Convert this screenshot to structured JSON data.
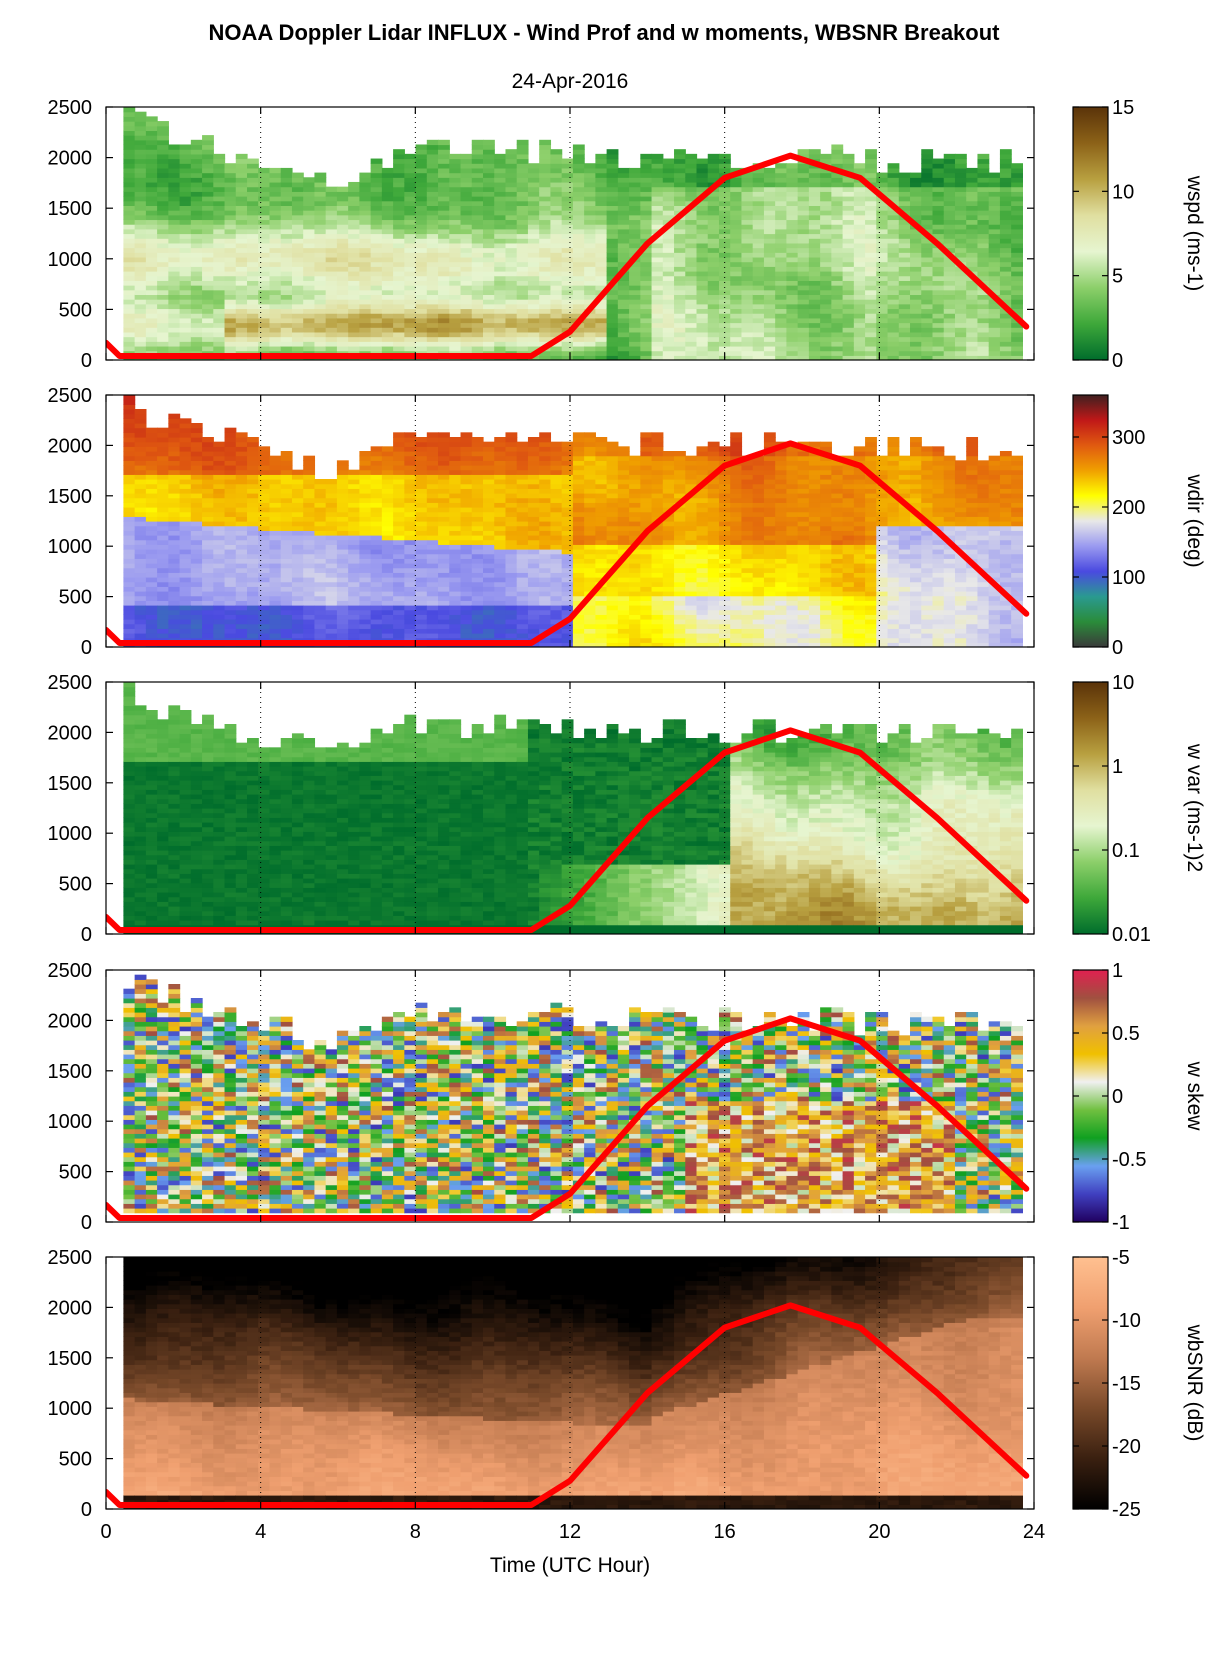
{
  "chart_data": {
    "type": "heatmap",
    "title": "NOAA Doppler Lidar INFLUX - Wind Prof and w moments, WBSNR Breakout",
    "subtitle": "24-Apr-2016",
    "xlabel": "Time (UTC Hour)",
    "xlim": [
      0,
      24
    ],
    "x_ticks": [
      "0",
      "4",
      "8",
      "12",
      "16",
      "20",
      "24"
    ],
    "x_tick_values": [
      0,
      4,
      8,
      12,
      16,
      20,
      24
    ],
    "ylim": [
      0,
      2500
    ],
    "y_ticks": [
      "0",
      "500",
      "1000",
      "1500",
      "2000",
      "2500"
    ],
    "y_tick_values": [
      0,
      500,
      1000,
      1500,
      2000,
      2500
    ],
    "vertical_dotted_gridlines_x": [
      4,
      8,
      12,
      16,
      20
    ],
    "overlay_curve": {
      "color": "#ff0000",
      "points": [
        [
          0.0,
          170
        ],
        [
          0.35,
          40
        ],
        [
          11.0,
          40
        ],
        [
          12.0,
          280
        ],
        [
          14.0,
          1150
        ],
        [
          16.0,
          1800
        ],
        [
          17.7,
          2020
        ],
        [
          19.5,
          1800
        ],
        [
          21.5,
          1150
        ],
        [
          23.8,
          330
        ]
      ]
    },
    "panels": [
      {
        "colorbar_label": "wspd (ms-1)",
        "colorbar_ticks": [
          "0",
          "5",
          "10",
          "15"
        ],
        "colorbar_tick_values": [
          0,
          5,
          10,
          15
        ],
        "colorbar_range": [
          0,
          15
        ],
        "colorbar_colors": [
          "#006d2c",
          "#3ea83a",
          "#8ccf6a",
          "#e6f5d0",
          "#e0dfa0",
          "#b8a040",
          "#8c6218",
          "#5a3309"
        ]
      },
      {
        "colorbar_label": "wdir (deg)",
        "colorbar_ticks": [
          "0",
          "100",
          "200",
          "300"
        ],
        "colorbar_tick_values": [
          0,
          100,
          200,
          300
        ],
        "colorbar_range": [
          0,
          360
        ],
        "colorbar_colors": [
          "#3a3a3a",
          "#2a8c3a",
          "#2a9a90",
          "#4a4ae0",
          "#9a9af0",
          "#e8e8e8",
          "#ffff00",
          "#f0a000",
          "#e05a10",
          "#c01818",
          "#402020"
        ]
      },
      {
        "colorbar_label": "w var (ms-1)2",
        "colorbar_ticks": [
          "0.01",
          "0.1",
          "1",
          "10"
        ],
        "colorbar_tick_values": [
          0.01,
          0.1,
          1,
          10
        ],
        "colorbar_range": [
          0.01,
          10
        ],
        "colorbar_scale": "log",
        "colorbar_colors": [
          "#006d2c",
          "#3ea83a",
          "#8ccf6a",
          "#e6f5d0",
          "#e0dfa0",
          "#b8a040",
          "#8c6218",
          "#5a3309"
        ]
      },
      {
        "colorbar_label": "w skew",
        "colorbar_ticks": [
          "-1",
          "-0.5",
          "0",
          "0.5",
          "1"
        ],
        "colorbar_tick_values": [
          -1,
          -0.5,
          0,
          0.5,
          1
        ],
        "colorbar_range": [
          -1,
          1
        ],
        "colorbar_colors": [
          "#200060",
          "#4040c0",
          "#6aa0f0",
          "#10a020",
          "#70c040",
          "#f0f0f0",
          "#f0c000",
          "#e0a040",
          "#a05040",
          "#e02050"
        ]
      },
      {
        "colorbar_label": "wbSNR (dB)",
        "colorbar_ticks": [
          "-25",
          "-20",
          "-15",
          "-10",
          "-5"
        ],
        "colorbar_tick_values": [
          -25,
          -20,
          -15,
          -10,
          -5
        ],
        "colorbar_range": [
          -25,
          -5
        ],
        "colorbar_colors": [
          "#000000",
          "#3a2010",
          "#7a4a2a",
          "#c07a50",
          "#f0a070",
          "#ffc090"
        ]
      }
    ]
  }
}
